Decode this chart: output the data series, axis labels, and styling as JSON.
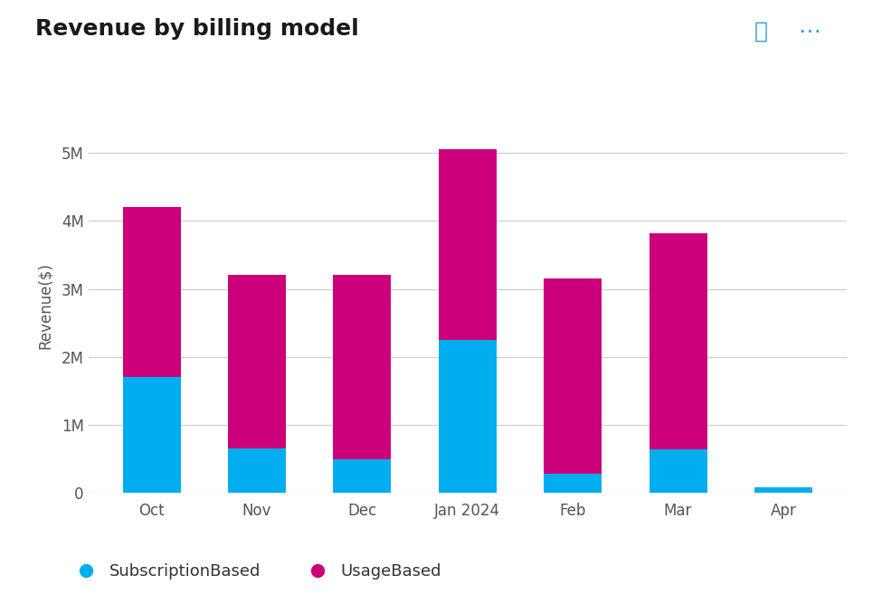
{
  "title": "Revenue by billing model",
  "ylabel": "Revenue($)",
  "categories": [
    "Oct",
    "Nov",
    "Dec",
    "Jan 2024",
    "Feb",
    "Mar",
    "Apr"
  ],
  "subscription_based": [
    1700000,
    650000,
    500000,
    2250000,
    280000,
    640000,
    80000
  ],
  "usage_based": [
    2500000,
    2550000,
    2700000,
    2800000,
    2870000,
    3180000,
    0
  ],
  "subscription_color": "#00AEEF",
  "usage_color": "#CC007A",
  "background_color": "#FFFFFF",
  "ylim": [
    0,
    5500000
  ],
  "yticks": [
    0,
    1000000,
    2000000,
    3000000,
    4000000,
    5000000
  ],
  "ytick_labels": [
    "0",
    "1M",
    "2M",
    "3M",
    "4M",
    "5M"
  ],
  "legend_labels": [
    "SubscriptionBased",
    "UsageBased"
  ],
  "title_fontsize": 18,
  "axis_fontsize": 12,
  "tick_fontsize": 12,
  "legend_fontsize": 13,
  "bar_width": 0.55,
  "grid_color": "#CCCCCC",
  "info_color": "#2D9CDB",
  "dots_color": "#2D9CDB"
}
